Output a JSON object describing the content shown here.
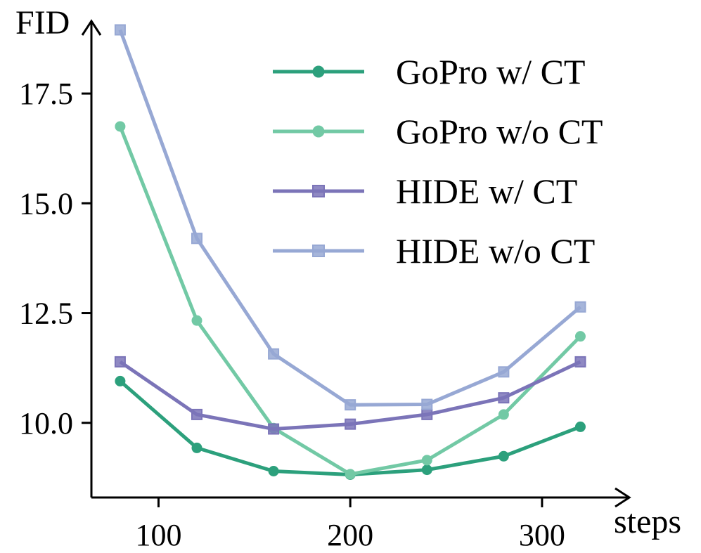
{
  "chart_data": {
    "type": "line",
    "title": "",
    "xlabel": "steps",
    "ylabel": "FID",
    "x": [
      80,
      120,
      160,
      200,
      240,
      280,
      320
    ],
    "xticks": [
      100,
      200,
      300
    ],
    "yticks": [
      10.0,
      12.5,
      15.0,
      17.5
    ],
    "xtick_labels": [
      "100",
      "200",
      "300"
    ],
    "ytick_labels": [
      "10.0",
      "12.5",
      "15.0",
      "17.5"
    ],
    "xlim": [
      65,
      340
    ],
    "ylim": [
      8.3,
      19.15
    ],
    "grid": false,
    "legend_position": "top-right",
    "series": [
      {
        "name": "GoPro w/ CT",
        "marker": "circle",
        "color": "#2ca07c",
        "values": [
          10.95,
          9.43,
          8.9,
          8.82,
          8.93,
          9.24,
          9.91
        ]
      },
      {
        "name": "GoPro w/o CT",
        "marker": "circle",
        "color": "#72c9a5",
        "values": [
          16.75,
          12.33,
          9.88,
          8.83,
          9.15,
          10.19,
          11.97
        ]
      },
      {
        "name": "HIDE w/ CT",
        "marker": "square",
        "color": "#7b74b8",
        "values": [
          11.39,
          10.19,
          9.86,
          9.97,
          10.19,
          10.57,
          11.39
        ]
      },
      {
        "name": "HIDE w/o CT",
        "marker": "square",
        "color": "#97a8d4",
        "values": [
          18.95,
          14.2,
          11.57,
          10.41,
          10.42,
          11.16,
          12.64
        ]
      }
    ]
  }
}
